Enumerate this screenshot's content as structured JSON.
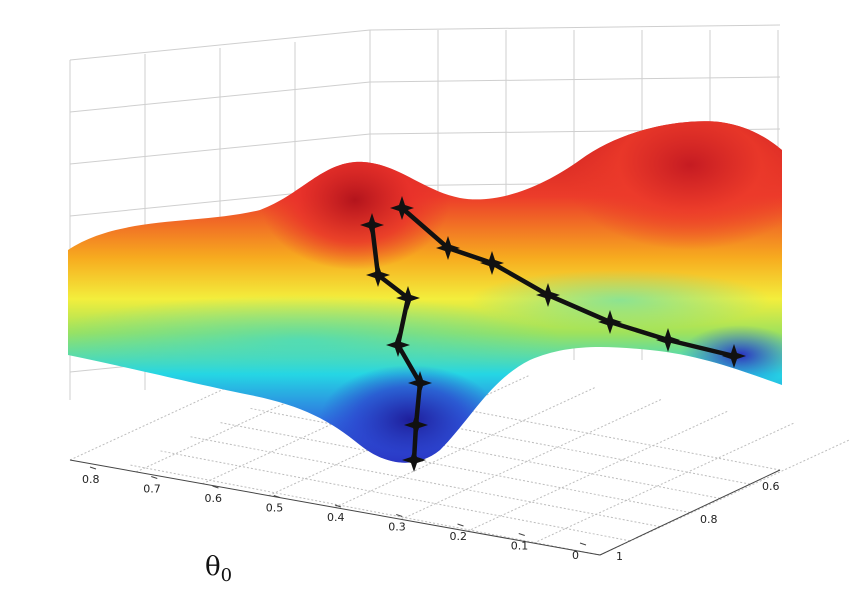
{
  "figure": {
    "axis_theta0": {
      "symbol": "θ",
      "subscript": "0"
    },
    "theta0_ticks": [
      "0.8",
      "0.7",
      "0.6",
      "0.5",
      "0.4",
      "0.3",
      "0.2",
      "0.1",
      "0"
    ],
    "theta1_ticks": [
      "1",
      "0.8",
      "0.6"
    ],
    "colors": {
      "high": "#e8202a",
      "upper": "#f6a21c",
      "mid": "#f4ef3a",
      "mid_low": "#9fe35a",
      "low": "#23d4e6",
      "deep": "#2a3fcf",
      "path": "#111111",
      "grid": "#c8c8c8"
    }
  }
}
